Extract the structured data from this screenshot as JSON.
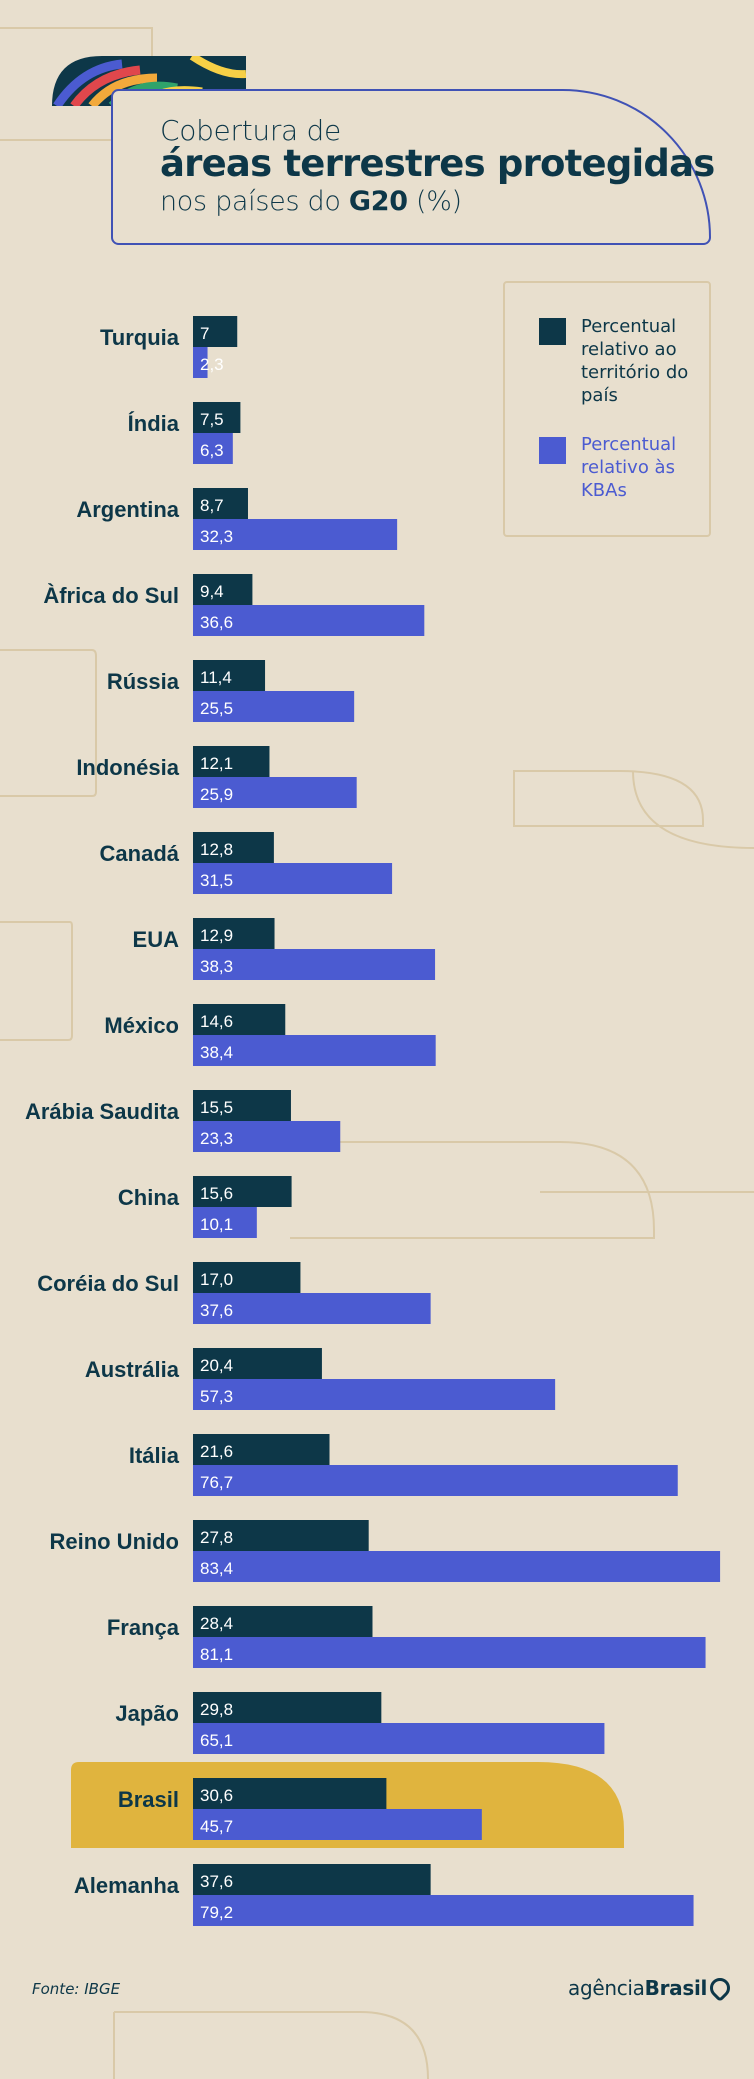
{
  "title": {
    "line1": "Cobertura de",
    "line2": "áreas terrestres protegidas",
    "line3_pre": "nos países do ",
    "line3_bold": "G20",
    "line3_post": " (%)"
  },
  "legend": {
    "items": [
      {
        "label": "Percentual relativo ao território do país",
        "color": "#0d3748",
        "text_color": "#0d3748"
      },
      {
        "label": "Percentual relativo às KBAs",
        "color": "#4b5bd1",
        "text_color": "#4b5bd1"
      }
    ]
  },
  "chart_data": {
    "type": "bar",
    "orientation": "horizontal",
    "title": "Cobertura de áreas terrestres protegidas nos países do G20 (%)",
    "categories": [
      "Turquia",
      "Índia",
      "Argentina",
      "Àfrica do Sul",
      "Rússia",
      "Indonésia",
      "Canadá",
      "EUA",
      "México",
      "Arábia Saudita",
      "China",
      "Coréia do Sul",
      "Austrália",
      "Itália",
      "Reino Unido",
      "França",
      "Japão",
      "Brasil",
      "Alemanha"
    ],
    "series": [
      {
        "name": "Percentual relativo ao território do país",
        "color": "#0d3748",
        "values": [
          7,
          7.5,
          8.7,
          9.4,
          11.4,
          12.1,
          12.8,
          12.9,
          14.6,
          15.5,
          15.6,
          17.0,
          20.4,
          21.6,
          27.8,
          28.4,
          29.8,
          30.6,
          37.6
        ],
        "labels": [
          "7",
          "7,5",
          "8,7",
          "9,4",
          "11,4",
          "12,1",
          "12,8",
          "12,9",
          "14,6",
          "15,5",
          "15,6",
          "17,0",
          "20,4",
          "21,6",
          "27,8",
          "28,4",
          "29,8",
          "30,6",
          "37,6"
        ]
      },
      {
        "name": "Percentual relativo às KBAs",
        "color": "#4b5bd1",
        "values": [
          2.3,
          6.3,
          32.3,
          36.6,
          25.5,
          25.9,
          31.5,
          38.3,
          38.4,
          23.3,
          10.1,
          37.6,
          57.3,
          76.7,
          83.4,
          81.1,
          65.1,
          45.7,
          79.2
        ],
        "labels": [
          "2,3",
          "6,3",
          "32,3",
          "36,6",
          "25,5",
          "25,9",
          "31,5",
          "38,3",
          "38,4",
          "23,3",
          "10,1",
          "37,6",
          "57,3",
          "76,7",
          "83,4",
          "81,1",
          "65,1",
          "45,7",
          "79,2"
        ]
      }
    ],
    "highlight": "Brasil",
    "highlight_color": "#e0b43e",
    "legend_position": "top-right",
    "grid": false
  },
  "footer": {
    "source": "Fonte:  IBGE",
    "brand_light": "agência",
    "brand_bold": "Brasil"
  }
}
